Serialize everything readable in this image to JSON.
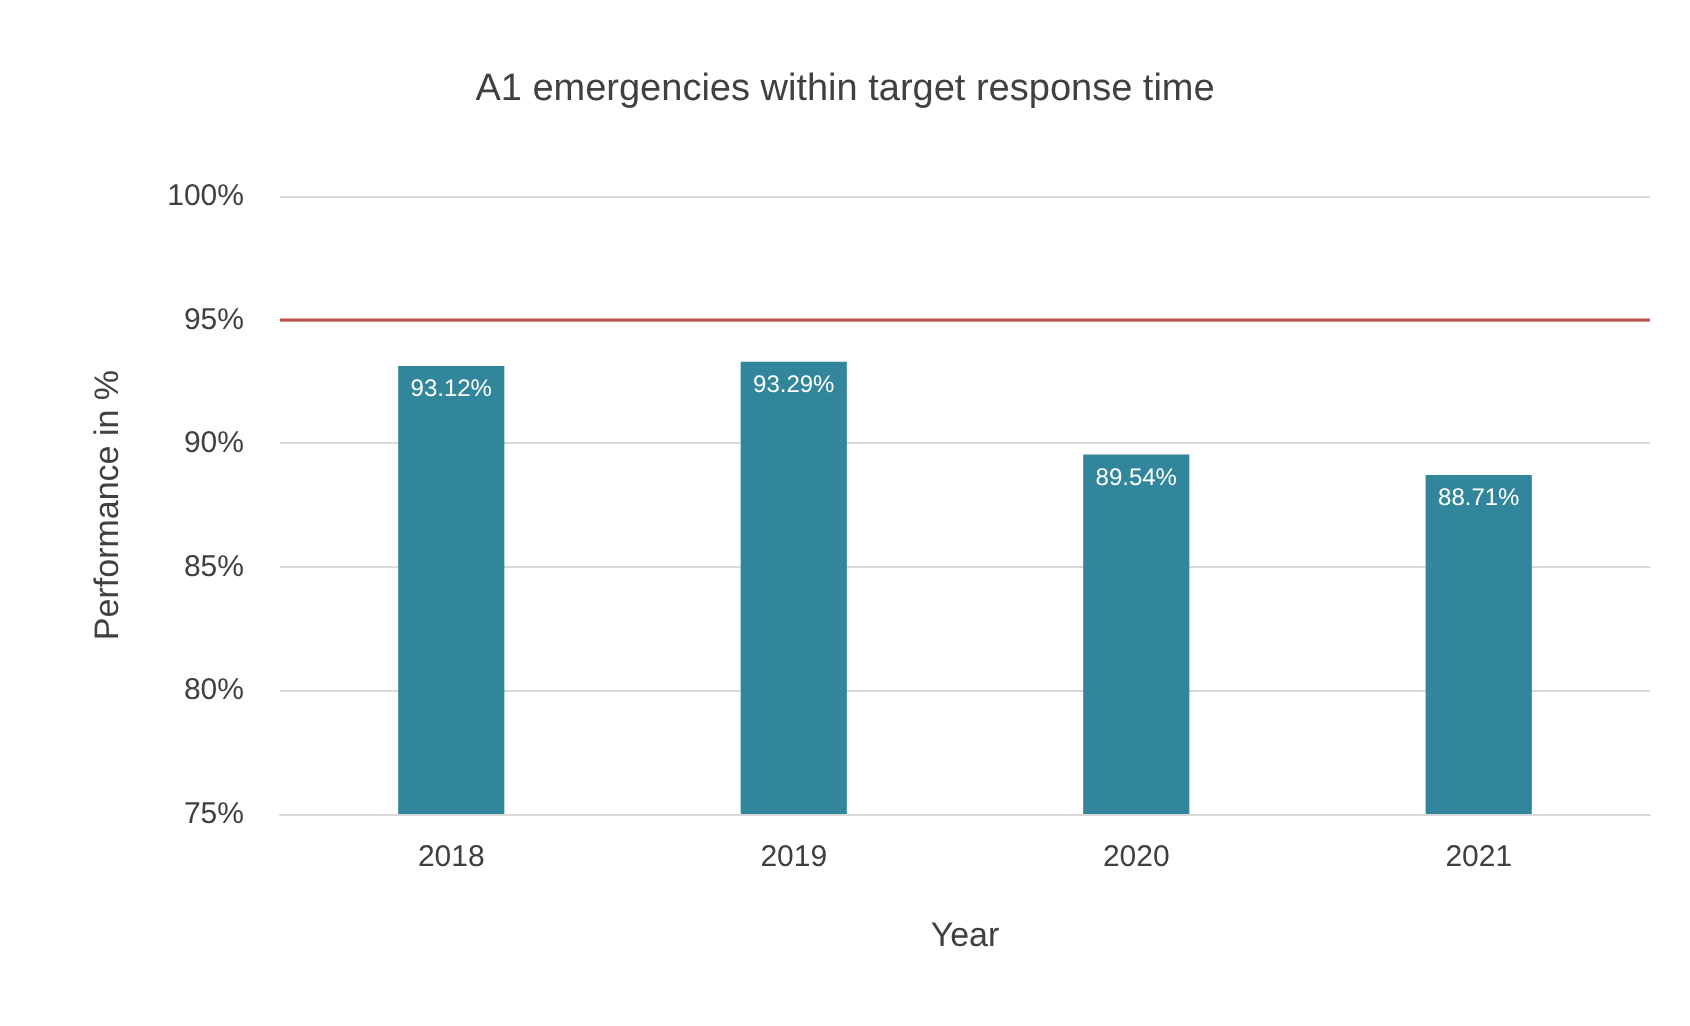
{
  "chart_data": {
    "type": "bar",
    "title": "A1 emergencies within target response time",
    "xlabel": "Year",
    "ylabel": "Performance in %",
    "categories": [
      "2018",
      "2019",
      "2020",
      "2021"
    ],
    "values": [
      93.12,
      93.29,
      89.54,
      88.71
    ],
    "value_labels": [
      "93.12%",
      "93.29%",
      "89.54%",
      "88.71%"
    ],
    "color": "#31869b",
    "ylim": [
      75,
      100
    ],
    "yticks": [
      {
        "value": 75,
        "label": "75%"
      },
      {
        "value": 80,
        "label": "80%"
      },
      {
        "value": 85,
        "label": "85%"
      },
      {
        "value": 90,
        "label": "90%"
      },
      {
        "value": 95,
        "label": "95%"
      },
      {
        "value": 100,
        "label": "100%"
      }
    ],
    "grid": "y",
    "ref_lines": [
      {
        "axis": "y",
        "value": 95,
        "color": "#c0504d"
      }
    ]
  }
}
